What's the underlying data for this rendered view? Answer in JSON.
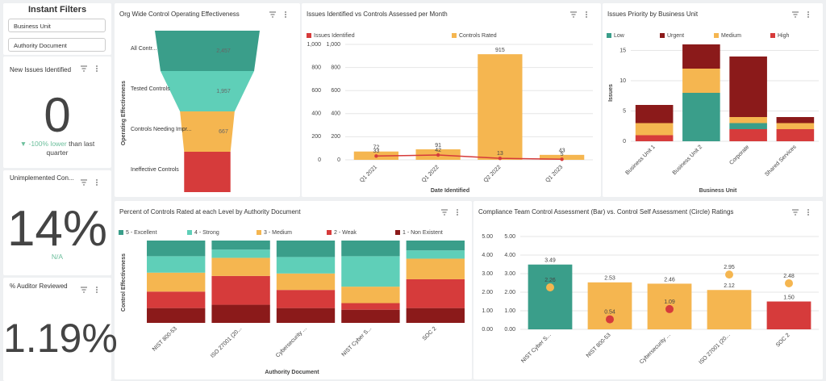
{
  "sidebar": {
    "title": "Instant Filters",
    "filters": [
      "Business Unit",
      "Authority Document"
    ],
    "kpis": [
      {
        "title": "New Issues Identified",
        "value": "0",
        "change": "▼ -100% lower",
        "change_note": "than last quarter"
      },
      {
        "title": "Unimplemented Con...",
        "value": "14%",
        "change": "N/A"
      },
      {
        "title": "% Auditor Reviewed",
        "value": "1.19%"
      }
    ]
  },
  "chart_data": [
    {
      "type": "funnel",
      "title": "Org Wide Control Operating Effectiveness",
      "y_label": "Operating Effectiveness",
      "categories": [
        "All Contr...",
        "Tested Controls",
        "Controls Needing Impr...",
        "Ineffective Controls"
      ],
      "values": [
        2457,
        1957,
        667,
        480
      ],
      "value_labels": [
        "2,457",
        "1,957",
        "667",
        null
      ],
      "colors": [
        "#3a9e8a",
        "#5fcfb8",
        "#f5b650",
        "#d63b3b"
      ]
    },
    {
      "type": "combo",
      "title": "Issues Identified vs Controls Assessed per Month",
      "x_label": "Date Identified",
      "categories": [
        "Q1 2021",
        "Q1 2022",
        "Q2 2022",
        "Q1 2023"
      ],
      "series": [
        {
          "name": "Issues Identified",
          "type": "line",
          "axis": "y2",
          "color": "#d63b3b",
          "values": [
            33,
            42,
            13,
            5
          ]
        },
        {
          "name": "Controls Rated",
          "type": "bar",
          "color": "#f5b650",
          "values": [
            72,
            91,
            915,
            43
          ]
        }
      ],
      "ylim": [
        0,
        1000
      ],
      "yticks": [
        0,
        200,
        400,
        600,
        800,
        {
          "value": 1000,
          "label": "1,000"
        }
      ],
      "y2lim": [
        0,
        1000
      ],
      "y2ticks": [
        0,
        200,
        400,
        600,
        800,
        {
          "value": 1000,
          "label": "1,000"
        }
      ],
      "grid": true
    },
    {
      "type": "stacked_bar",
      "title": "Issues Priority by Business Unit",
      "x_label": "Business Unit",
      "y_label": "Issues",
      "categories": [
        "Business Unit 1",
        "Business Unit 2",
        "Corporate",
        "Shared Services"
      ],
      "series": [
        {
          "name": "Low",
          "color": "#3a9e8a",
          "values": [
            0,
            8,
            1,
            0
          ]
        },
        {
          "name": "Urgent",
          "color": "#8b1a1a",
          "values": [
            3,
            4,
            10,
            1
          ]
        },
        {
          "name": "Medium",
          "color": "#f5b650",
          "values": [
            2,
            4,
            1,
            1
          ]
        },
        {
          "name": "High",
          "color": "#d63b3b",
          "values": [
            1,
            0,
            2,
            2
          ]
        }
      ],
      "ylim": [
        0,
        16
      ],
      "yticks": [
        0,
        5,
        10,
        15
      ],
      "grid": true
    },
    {
      "type": "percent_stacked_bar",
      "title": "Percent of Controls Rated at each Level by Authority Document",
      "x_label": "Authority Document",
      "y_label": "Control Effectiveness",
      "categories": [
        "NIST 800-53",
        "ISO 27001 (20...",
        "Cybersecurity ...",
        "NIST Cyber S...",
        "SOC 2"
      ],
      "series": [
        {
          "name": "5 - Excellent",
          "color": "#3a9e8a",
          "values": [
            19,
            11,
            20,
            19,
            12
          ]
        },
        {
          "name": "4 - Strong",
          "color": "#5fcfb8",
          "values": [
            20,
            10,
            20,
            37,
            10
          ]
        },
        {
          "name": "3 - Medium",
          "color": "#f5b650",
          "values": [
            23,
            22,
            20,
            20,
            25
          ]
        },
        {
          "name": "2 - Weak",
          "color": "#d63b3b",
          "values": [
            20,
            35,
            22,
            8,
            35
          ]
        },
        {
          "name": "1 - Non Existent",
          "color": "#8b1a1a",
          "values": [
            18,
            22,
            18,
            16,
            18
          ]
        }
      ],
      "ylim": [
        0,
        100
      ]
    },
    {
      "type": "bar_circle",
      "title": "Compliance Team Control Assessment (Bar) vs. Control Self Assessment (Circle) Ratings",
      "categories": [
        "NIST Cyber S...",
        "NIST 800-53",
        "Cybersecurity ...",
        "ISO 27001 (20...",
        "SOC 2"
      ],
      "series": [
        {
          "type": "bar",
          "values": [
            3.49,
            2.53,
            2.46,
            2.12,
            1.5
          ],
          "value_labels": [
            "3.49",
            "2.53",
            "2.46",
            "2.12",
            "1.50"
          ],
          "colors": [
            "#3a9e8a",
            "#f5b650",
            "#f5b650",
            "#f5b650",
            "#d63b3b"
          ]
        },
        {
          "type": "circle",
          "axis": "y2",
          "values": [
            2.26,
            0.54,
            1.09,
            2.95,
            2.48
          ],
          "value_labels": [
            "2.26",
            "0.54",
            "1.09",
            "2.95",
            "2.48"
          ],
          "colors": [
            "#f5b650",
            "#d63b3b",
            "#d63b3b",
            "#f5b650",
            "#f5b650"
          ]
        }
      ],
      "ylim": [
        0,
        5
      ],
      "yticks": [
        {
          "value": 0,
          "label": "0.00"
        },
        {
          "value": 1,
          "label": "1.00"
        },
        {
          "value": 2,
          "label": "2.00"
        },
        {
          "value": 3,
          "label": "3.00"
        },
        {
          "value": 4,
          "label": "4.00"
        },
        {
          "value": 5,
          "label": "5.00"
        }
      ],
      "y2lim": [
        0,
        5
      ],
      "y2ticks": [
        {
          "value": 0,
          "label": "0.00"
        },
        {
          "value": 1,
          "label": "1.00"
        },
        {
          "value": 2,
          "label": "2.00"
        },
        {
          "value": 3,
          "label": "3.00"
        },
        {
          "value": 4,
          "label": "4.00"
        },
        {
          "value": 5,
          "label": "5.00"
        }
      ],
      "grid": true
    }
  ]
}
